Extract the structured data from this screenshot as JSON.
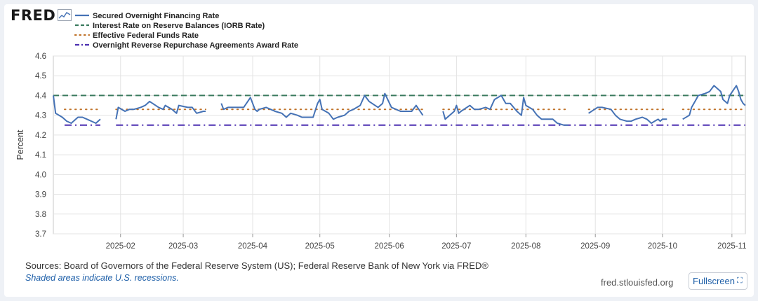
{
  "brand": {
    "logo_text": "FRED"
  },
  "footer": {
    "sources": "Sources: Board of Governors of the Federal Reserve System (US); Federal Reserve Bank of New York via FRED®",
    "recessions_note": "Shaded areas indicate U.S. recessions.",
    "site": "fred.stlouisfed.org",
    "fullscreen_label": "Fullscreen",
    "fullscreen_icon": "fullscreen-icon"
  },
  "chart_data": {
    "type": "line",
    "ylabel": "Percent",
    "xlabel": "",
    "ylim": [
      3.7,
      4.6
    ],
    "yticks": [
      3.7,
      3.8,
      3.9,
      4.0,
      4.1,
      4.2,
      4.3,
      4.4,
      4.5,
      4.6
    ],
    "x_range": [
      "2025-01-02",
      "2025-11-07"
    ],
    "xticks": [
      {
        "date": "2025-02-01",
        "label": "2025-02"
      },
      {
        "date": "2025-03-01",
        "label": "2025-03"
      },
      {
        "date": "2025-04-01",
        "label": "2025-04"
      },
      {
        "date": "2025-05-01",
        "label": "2025-05"
      },
      {
        "date": "2025-06-01",
        "label": "2025-06"
      },
      {
        "date": "2025-07-01",
        "label": "2025-07"
      },
      {
        "date": "2025-08-01",
        "label": "2025-08"
      },
      {
        "date": "2025-09-01",
        "label": "2025-09"
      },
      {
        "date": "2025-10-01",
        "label": "2025-10"
      },
      {
        "date": "2025-11-01",
        "label": "2025-11"
      }
    ],
    "grid": true,
    "legend_position": "top-left",
    "series": [
      {
        "name": "Secured Overnight Financing Rate",
        "color": "#4572b5",
        "style": "solid",
        "segments": [
          [
            [
              "2025-01-02",
              4.4
            ],
            [
              "2025-01-03",
              4.31
            ],
            [
              "2025-01-06",
              4.29
            ],
            [
              "2025-01-08",
              4.27
            ],
            [
              "2025-01-10",
              4.26
            ],
            [
              "2025-01-13",
              4.29
            ],
            [
              "2025-01-15",
              4.29
            ],
            [
              "2025-01-17",
              4.28
            ],
            [
              "2025-01-21",
              4.26
            ],
            [
              "2025-01-22",
              4.27
            ],
            [
              "2025-01-23",
              4.28
            ]
          ],
          [
            [
              "2025-01-30",
              4.28
            ],
            [
              "2025-01-31",
              4.34
            ],
            [
              "2025-02-03",
              4.32
            ],
            [
              "2025-02-05",
              4.33
            ],
            [
              "2025-02-07",
              4.33
            ],
            [
              "2025-02-10",
              4.34
            ],
            [
              "2025-02-12",
              4.35
            ],
            [
              "2025-02-14",
              4.37
            ],
            [
              "2025-02-18",
              4.34
            ],
            [
              "2025-02-20",
              4.33
            ],
            [
              "2025-02-21",
              4.35
            ],
            [
              "2025-02-24",
              4.33
            ],
            [
              "2025-02-26",
              4.31
            ],
            [
              "2025-02-27",
              4.35
            ],
            [
              "2025-03-03",
              4.34
            ],
            [
              "2025-03-05",
              4.34
            ],
            [
              "2025-03-07",
              4.31
            ],
            [
              "2025-03-10",
              4.32
            ],
            [
              "2025-03-11",
              4.32
            ]
          ],
          [
            [
              "2025-03-18",
              4.36
            ],
            [
              "2025-03-19",
              4.33
            ],
            [
              "2025-03-21",
              4.34
            ],
            [
              "2025-03-24",
              4.34
            ],
            [
              "2025-03-26",
              4.34
            ],
            [
              "2025-03-28",
              4.34
            ],
            [
              "2025-03-31",
              4.39
            ],
            [
              "2025-04-02",
              4.33
            ],
            [
              "2025-04-03",
              4.32
            ],
            [
              "2025-04-04",
              4.33
            ],
            [
              "2025-04-07",
              4.34
            ],
            [
              "2025-04-09",
              4.33
            ],
            [
              "2025-04-11",
              4.32
            ],
            [
              "2025-04-14",
              4.31
            ],
            [
              "2025-04-16",
              4.29
            ],
            [
              "2025-04-18",
              4.31
            ],
            [
              "2025-04-21",
              4.3
            ],
            [
              "2025-04-23",
              4.29
            ],
            [
              "2025-04-25",
              4.29
            ],
            [
              "2025-04-28",
              4.29
            ],
            [
              "2025-04-30",
              4.36
            ],
            [
              "2025-05-01",
              4.38
            ],
            [
              "2025-05-02",
              4.33
            ],
            [
              "2025-05-05",
              4.31
            ],
            [
              "2025-05-07",
              4.28
            ],
            [
              "2025-05-09",
              4.29
            ],
            [
              "2025-05-12",
              4.3
            ],
            [
              "2025-05-14",
              4.32
            ],
            [
              "2025-05-16",
              4.33
            ],
            [
              "2025-05-19",
              4.35
            ],
            [
              "2025-05-21",
              4.4
            ],
            [
              "2025-05-23",
              4.37
            ],
            [
              "2025-05-27",
              4.34
            ],
            [
              "2025-05-29",
              4.36
            ],
            [
              "2025-05-30",
              4.41
            ],
            [
              "2025-06-02",
              4.34
            ],
            [
              "2025-06-04",
              4.33
            ],
            [
              "2025-06-06",
              4.32
            ],
            [
              "2025-06-09",
              4.32
            ],
            [
              "2025-06-11",
              4.32
            ],
            [
              "2025-06-13",
              4.35
            ],
            [
              "2025-06-16",
              4.3
            ]
          ],
          [
            [
              "2025-06-25",
              4.32
            ],
            [
              "2025-06-26",
              4.28
            ],
            [
              "2025-06-30",
              4.32
            ],
            [
              "2025-07-01",
              4.35
            ],
            [
              "2025-07-02",
              4.31
            ],
            [
              "2025-07-03",
              4.32
            ],
            [
              "2025-07-07",
              4.35
            ],
            [
              "2025-07-09",
              4.33
            ],
            [
              "2025-07-11",
              4.33
            ],
            [
              "2025-07-14",
              4.34
            ],
            [
              "2025-07-16",
              4.33
            ],
            [
              "2025-07-18",
              4.38
            ],
            [
              "2025-07-21",
              4.4
            ],
            [
              "2025-07-23",
              4.36
            ],
            [
              "2025-07-25",
              4.36
            ],
            [
              "2025-07-28",
              4.32
            ],
            [
              "2025-07-30",
              4.3
            ],
            [
              "2025-07-31",
              4.39
            ],
            [
              "2025-08-01",
              4.35
            ],
            [
              "2025-08-04",
              4.33
            ],
            [
              "2025-08-06",
              4.3
            ],
            [
              "2025-08-08",
              4.28
            ],
            [
              "2025-08-11",
              4.28
            ],
            [
              "2025-08-13",
              4.28
            ],
            [
              "2025-08-15",
              4.26
            ],
            [
              "2025-08-18",
              4.25
            ],
            [
              "2025-08-20",
              4.25
            ]
          ],
          [
            [
              "2025-08-29",
              4.31
            ],
            [
              "2025-09-02",
              4.34
            ],
            [
              "2025-09-04",
              4.34
            ],
            [
              "2025-09-08",
              4.33
            ],
            [
              "2025-09-10",
              4.3
            ],
            [
              "2025-09-12",
              4.28
            ],
            [
              "2025-09-15",
              4.27
            ],
            [
              "2025-09-17",
              4.27
            ],
            [
              "2025-09-19",
              4.28
            ],
            [
              "2025-09-22",
              4.29
            ],
            [
              "2025-09-24",
              4.28
            ],
            [
              "2025-09-26",
              4.26
            ],
            [
              "2025-09-29",
              4.28
            ],
            [
              "2025-09-30",
              4.27
            ],
            [
              "2025-10-01",
              4.28
            ],
            [
              "2025-10-03",
              4.28
            ]
          ],
          [
            [
              "2025-10-10",
              4.28
            ],
            [
              "2025-10-13",
              4.3
            ],
            [
              "2025-10-14",
              4.34
            ],
            [
              "2025-10-16",
              4.38
            ],
            [
              "2025-10-17",
              4.4
            ],
            [
              "2025-10-20",
              4.41
            ],
            [
              "2025-10-22",
              4.42
            ],
            [
              "2025-10-24",
              4.45
            ],
            [
              "2025-10-27",
              4.42
            ],
            [
              "2025-10-28",
              4.38
            ],
            [
              "2025-10-30",
              4.36
            ],
            [
              "2025-10-31",
              4.4
            ],
            [
              "2025-11-03",
              4.45
            ],
            [
              "2025-11-04",
              4.42
            ],
            [
              "2025-11-05",
              4.38
            ],
            [
              "2025-11-06",
              4.36
            ],
            [
              "2025-11-07",
              4.35
            ]
          ]
        ]
      },
      {
        "name": "Interest Rate on Reserve Balances (IORB Rate)",
        "color": "#3a7a5e",
        "style": "dashed",
        "segments": [
          [
            [
              "2025-01-02",
              4.4
            ],
            [
              "2025-11-07",
              4.4
            ]
          ]
        ]
      },
      {
        "name": "Effective Federal Funds Rate",
        "color": "#c0732a",
        "style": "dotted",
        "segments": [
          [
            [
              "2025-01-07",
              4.33
            ],
            [
              "2025-01-23",
              4.33
            ]
          ],
          [
            [
              "2025-01-30",
              4.33
            ],
            [
              "2025-03-11",
              4.33
            ]
          ],
          [
            [
              "2025-03-18",
              4.33
            ],
            [
              "2025-06-16",
              4.33
            ]
          ],
          [
            [
              "2025-06-25",
              4.33
            ],
            [
              "2025-08-20",
              4.33
            ]
          ],
          [
            [
              "2025-08-29",
              4.33
            ],
            [
              "2025-10-03",
              4.33
            ]
          ],
          [
            [
              "2025-10-10",
              4.33
            ],
            [
              "2025-11-07",
              4.33
            ]
          ]
        ]
      },
      {
        "name": "Overnight Reverse Repurchase Agreements Award Rate",
        "color": "#4b2fb0",
        "style": "dashdot",
        "segments": [
          [
            [
              "2025-01-07",
              4.25
            ],
            [
              "2025-01-23",
              4.25
            ]
          ],
          [
            [
              "2025-01-30",
              4.25
            ],
            [
              "2025-11-07",
              4.25
            ]
          ]
        ]
      }
    ]
  }
}
